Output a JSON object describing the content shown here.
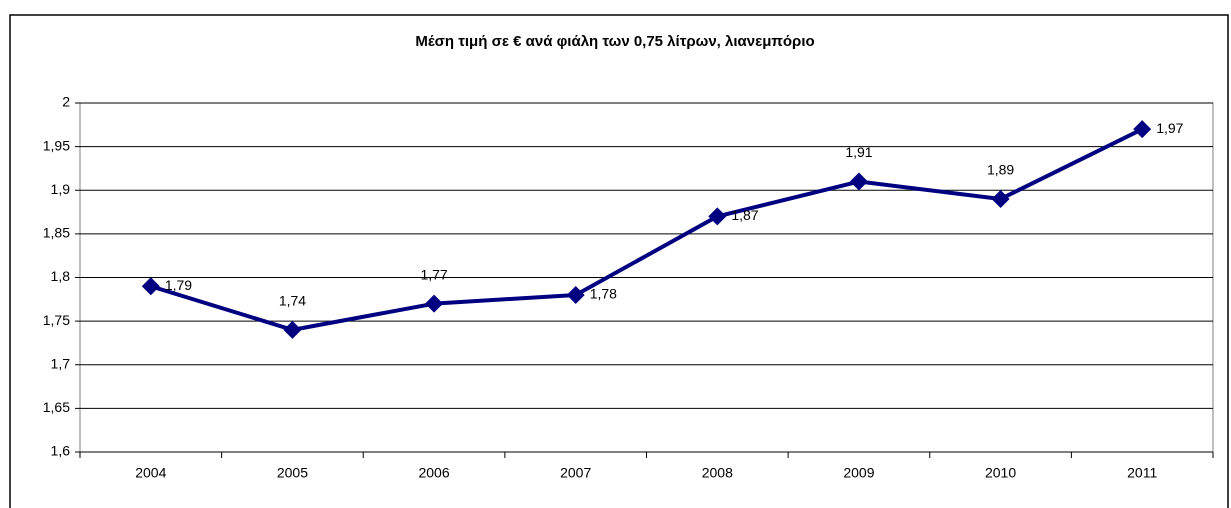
{
  "chart_data": {
    "type": "line",
    "title": "Μέση τιμή σε € ανά φιάλη των 0,75 λίτρων, λιανεμπόριο",
    "categories": [
      "2004",
      "2005",
      "2006",
      "2007",
      "2008",
      "2009",
      "2010",
      "2011"
    ],
    "series": [
      {
        "color": "#000080",
        "values": [
          1.79,
          1.74,
          1.77,
          1.78,
          1.87,
          1.91,
          1.89,
          1.97
        ],
        "value_labels": [
          "1,79",
          "1,74",
          "1,77",
          "1,78",
          "1,87",
          "1,91",
          "1,89",
          "1,97"
        ]
      }
    ],
    "ylim": [
      1.6,
      2
    ],
    "yticks": [
      {
        "value": 1.6,
        "label": "1,6"
      },
      {
        "value": 1.65,
        "label": "1,65"
      },
      {
        "value": 1.7,
        "label": "1,7"
      },
      {
        "value": 1.75,
        "label": "1,75"
      },
      {
        "value": 1.8,
        "label": "1,8"
      },
      {
        "value": 1.85,
        "label": "1,85"
      },
      {
        "value": 1.9,
        "label": "1,9"
      },
      {
        "value": 1.95,
        "label": "1,95"
      },
      2
    ],
    "grid": true
  }
}
